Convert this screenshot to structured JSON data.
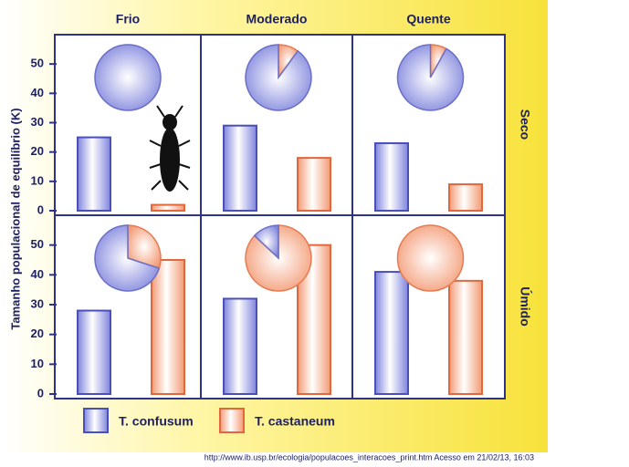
{
  "chart_data": {
    "type": "bar",
    "ylabel": "Tamanho populacional de equilíbrio (K)",
    "columns": [
      "Frio",
      "Moderado",
      "Quente"
    ],
    "rows": [
      "Seco",
      "Úmido"
    ],
    "ylim": [
      0,
      60
    ],
    "yticks": [
      0,
      10,
      20,
      30,
      40,
      50
    ],
    "series": [
      {
        "name": "T. confusum",
        "color": "#7f84dc",
        "values": [
          [
            25,
            29,
            23
          ],
          [
            28,
            32,
            41
          ]
        ]
      },
      {
        "name": "T. castaneum",
        "color": "#f39a74",
        "values": [
          [
            2,
            18,
            9
          ],
          [
            45,
            50,
            38
          ]
        ]
      }
    ],
    "pie_shares": [
      [
        [
          100,
          0
        ],
        [
          90,
          10
        ],
        [
          92,
          8
        ]
      ],
      [
        [
          70,
          30
        ],
        [
          13,
          87
        ],
        [
          0,
          100
        ]
      ]
    ]
  },
  "source": "http://www.ib.usp.br/ecologia/populacoes_interacoes_print.htm Acesso em 21/02/13, 16:03"
}
